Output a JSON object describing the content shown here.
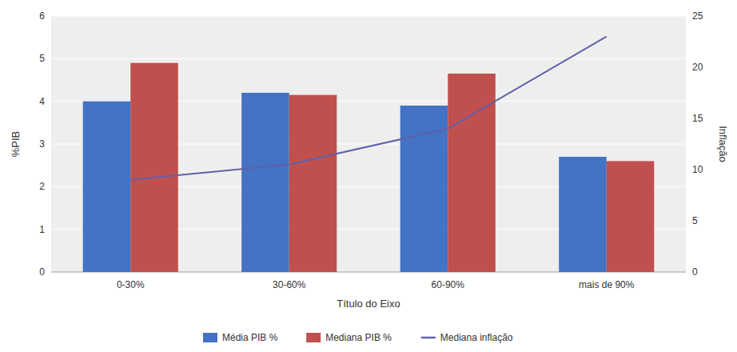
{
  "chart_data": {
    "type": "bar",
    "xlabel": "Título do Eixo",
    "ylabel": "%PIB",
    "y2label": "Inflação",
    "categories": [
      "0-30%",
      "30-60%",
      "60-90%",
      "mais de 90%"
    ],
    "series": [
      {
        "name": "Média PIB %",
        "color": "#4472C4",
        "values": [
          4.0,
          4.2,
          3.9,
          2.7
        ]
      },
      {
        "name": "Mediana PIB %",
        "color": "#C0504D",
        "values": [
          4.9,
          4.15,
          4.65,
          2.6
        ]
      },
      {
        "name": "Mediana inflação",
        "color": "#6060AA",
        "type": "line",
        "axis": "y2",
        "values": [
          9.0,
          10.5,
          14.0,
          23.0
        ]
      }
    ],
    "ylim": [
      0,
      6
    ],
    "yticks": [
      0,
      1,
      2,
      3,
      4,
      5,
      6
    ],
    "y2lim": [
      0,
      25
    ],
    "y2ticks": [
      0,
      5,
      10,
      15,
      20,
      25
    ],
    "grid": true,
    "legend": "bottom"
  }
}
